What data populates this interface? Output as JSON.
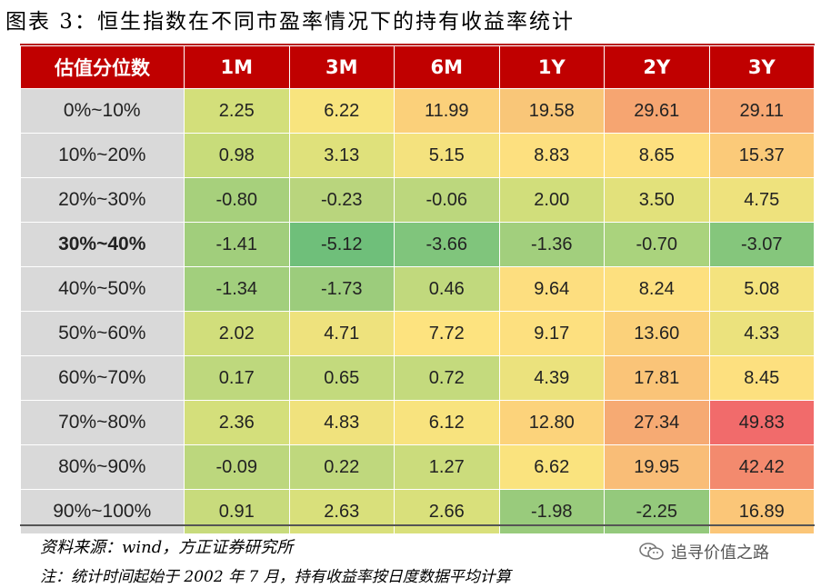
{
  "title": "图表 3：恒生指数在不同市盈率情况下的持有收益率统计",
  "header": {
    "row_label": "估值分位数",
    "columns": [
      "1M",
      "3M",
      "6M",
      "1Y",
      "2Y",
      "3Y"
    ]
  },
  "rows": [
    {
      "label": "0%~10%",
      "bold": false,
      "values": [
        "2.25",
        "6.22",
        "11.99",
        "19.58",
        "29.61",
        "29.11"
      ],
      "colors": [
        "#d3df7a",
        "#f8e47e",
        "#fbd07a",
        "#f9c678",
        "#f6a571",
        "#f7a874"
      ]
    },
    {
      "label": "10%~20%",
      "bold": false,
      "values": [
        "0.98",
        "3.13",
        "5.15",
        "8.83",
        "8.65",
        "15.37"
      ],
      "colors": [
        "#c8dc7a",
        "#dfe17b",
        "#f4e27e",
        "#fde07f",
        "#fde07f",
        "#fbca79"
      ]
    },
    {
      "label": "20%~30%",
      "bold": false,
      "values": [
        "-0.80",
        "-0.23",
        "-0.06",
        "2.00",
        "3.50",
        "4.75"
      ],
      "colors": [
        "#a7d07c",
        "#b9d57d",
        "#bcd77d",
        "#d1de7b",
        "#e2e17b",
        "#eee27d"
      ]
    },
    {
      "label": "30%~40%",
      "bold": true,
      "values": [
        "-1.41",
        "-5.12",
        "-3.66",
        "-1.36",
        "-0.70",
        "-3.07"
      ],
      "colors": [
        "#a1ce7c",
        "#6fbf7a",
        "#80c57c",
        "#a2cf7d",
        "#aad37d",
        "#85c67c"
      ]
    },
    {
      "label": "40%~50%",
      "bold": false,
      "values": [
        "-1.34",
        "-1.73",
        "0.46",
        "9.64",
        "8.24",
        "5.08"
      ],
      "colors": [
        "#a2cf7d",
        "#9ccc7c",
        "#c1d97d",
        "#fdde7f",
        "#fde07f",
        "#f4e37e"
      ]
    },
    {
      "label": "50%~60%",
      "bold": false,
      "values": [
        "2.02",
        "4.71",
        "7.72",
        "9.17",
        "13.60",
        "4.33"
      ],
      "colors": [
        "#d1de7b",
        "#eee27d",
        "#fde37f",
        "#fde07f",
        "#fbd17a",
        "#ebe27d"
      ]
    },
    {
      "label": "60%~70%",
      "bold": false,
      "values": [
        "0.17",
        "0.65",
        "0.72",
        "4.39",
        "17.81",
        "8.45"
      ],
      "colors": [
        "#bed87d",
        "#c3da7d",
        "#c4da7d",
        "#ebe27d",
        "#fac478",
        "#fde07f"
      ]
    },
    {
      "label": "70%~80%",
      "bold": false,
      "values": [
        "2.36",
        "4.83",
        "6.12",
        "12.80",
        "27.34",
        "49.83"
      ],
      "colors": [
        "#d4df7b",
        "#f0e27d",
        "#f8e37e",
        "#fcd37b",
        "#f6aa73",
        "#f16b6b"
      ]
    },
    {
      "label": "80%~90%",
      "bold": false,
      "values": [
        "-0.09",
        "0.22",
        "1.27",
        "6.62",
        "19.95",
        "42.42"
      ],
      "colors": [
        "#bcd77d",
        "#bfd87d",
        "#cbdc7c",
        "#fae37e",
        "#f9bd77",
        "#f38a6e"
      ]
    },
    {
      "label": "90%~100%",
      "bold": false,
      "values": [
        "0.91",
        "2.63",
        "2.66",
        "-1.98",
        "-2.25",
        "16.89"
      ],
      "colors": [
        "#c8db7c",
        "#d9e07b",
        "#d9e07b",
        "#99cb7c",
        "#94c97c",
        "#fbc678"
      ]
    }
  ],
  "source": "资料来源：wind，方正证券研究所",
  "note": "注：统计时间起始于 2002 年 7 月，持有收益率按日度数据平均计算",
  "watermark": "追寻价值之路",
  "watermark_icon": "wechat-icon"
}
